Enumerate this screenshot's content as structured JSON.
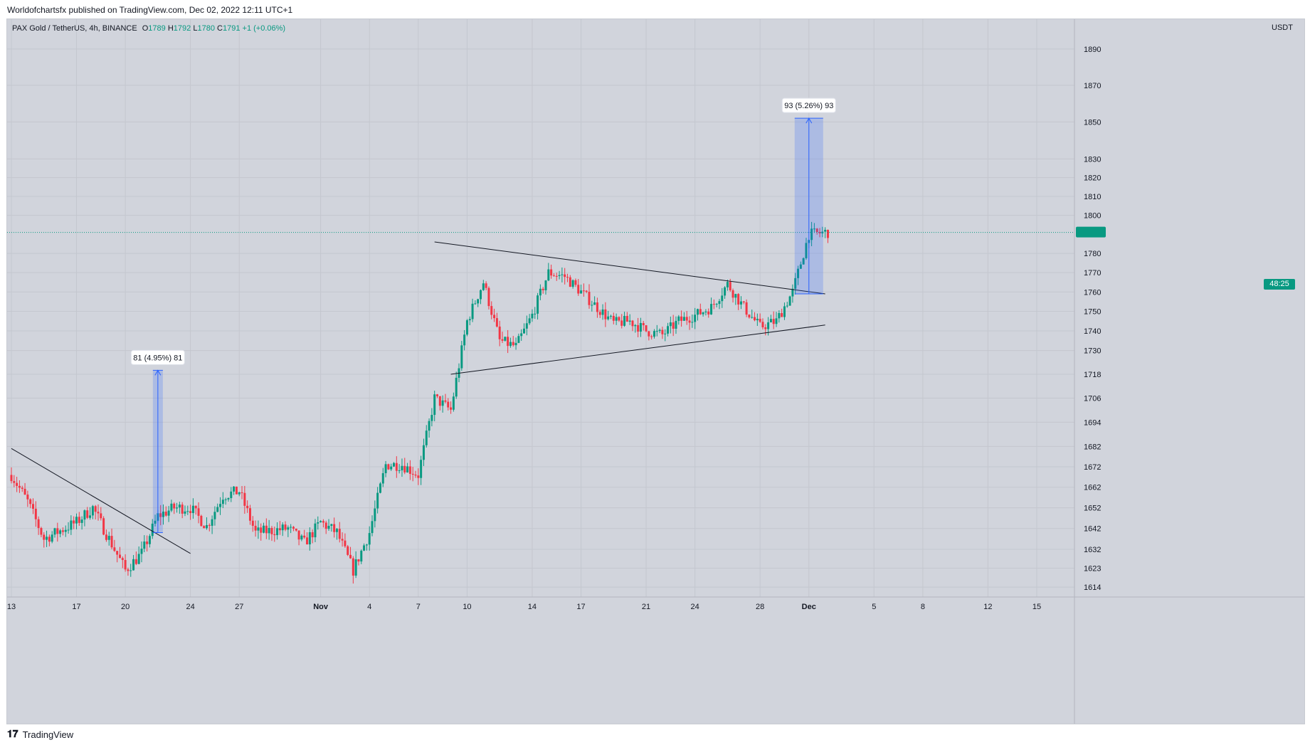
{
  "header": {
    "published_text": "Worldofchartsfx published on TradingView.com, Dec 02, 2022 12:11 UTC+1"
  },
  "legend": {
    "symbol": "PAX Gold / TetherUS, 4h, BINANCE",
    "open_label": "O",
    "open": "1789",
    "high_label": "H",
    "high": "1792",
    "low_label": "L",
    "low": "1780",
    "close_label": "C",
    "close": "1791",
    "change": "+1 (+0.06%)"
  },
  "price_axis": {
    "currency": "USDT",
    "countdown": "48:25"
  },
  "footer": {
    "brand": "TradingView"
  },
  "colors": {
    "background": "#d1d4dc",
    "up": "#089981",
    "down": "#f23645",
    "measure": "#2962ff"
  },
  "chart_data": {
    "type": "candlestick",
    "title": "PAX Gold / TetherUS, 4h, BINANCE",
    "y_scale": "log",
    "ylim": [
      1610,
      1905
    ],
    "y_ticks": [
      1614,
      1623,
      1632,
      1642,
      1652,
      1662,
      1672,
      1682,
      1694,
      1706,
      1718,
      1730,
      1740,
      1750,
      1760,
      1770,
      1780,
      1800,
      1810,
      1820,
      1830,
      1850,
      1870,
      1890
    ],
    "x_axis_labels": [
      "13",
      "17",
      "20",
      "24",
      "27",
      "Nov",
      "4",
      "7",
      "10",
      "14",
      "17",
      "21",
      "24",
      "28",
      "Dec",
      "5",
      "8",
      "12",
      "15"
    ],
    "x_axis_dates": [
      "2022-10-13",
      "2022-10-17",
      "2022-10-20",
      "2022-10-24",
      "2022-10-27",
      "2022-11-01",
      "2022-11-04",
      "2022-11-07",
      "2022-11-10",
      "2022-11-14",
      "2022-11-17",
      "2022-11-21",
      "2022-11-24",
      "2022-11-28",
      "2022-12-01",
      "2022-12-05",
      "2022-12-08",
      "2022-12-12",
      "2022-12-15"
    ],
    "price_anchors": [
      [
        "2022-10-13",
        1668
      ],
      [
        "2022-10-14",
        1655
      ],
      [
        "2022-10-15",
        1637
      ],
      [
        "2022-10-17",
        1645
      ],
      [
        "2022-10-18",
        1652
      ],
      [
        "2022-10-19",
        1637
      ],
      [
        "2022-10-20",
        1622
      ],
      [
        "2022-10-21",
        1630
      ],
      [
        "2022-10-22",
        1648
      ],
      [
        "2022-10-23",
        1652
      ],
      [
        "2022-10-24",
        1652
      ],
      [
        "2022-10-25",
        1643
      ],
      [
        "2022-10-26",
        1658
      ],
      [
        "2022-10-27",
        1660
      ],
      [
        "2022-10-28",
        1640
      ],
      [
        "2022-10-30",
        1642
      ],
      [
        "2022-10-31",
        1635
      ],
      [
        "2022-11-01",
        1645
      ],
      [
        "2022-11-02",
        1640
      ],
      [
        "2022-11-03",
        1622
      ],
      [
        "2022-11-04",
        1640
      ],
      [
        "2022-11-05",
        1673
      ],
      [
        "2022-11-06",
        1673
      ],
      [
        "2022-11-07",
        1668
      ],
      [
        "2022-11-08",
        1706
      ],
      [
        "2022-11-09",
        1700
      ],
      [
        "2022-11-10",
        1745
      ],
      [
        "2022-11-11",
        1765
      ],
      [
        "2022-11-12",
        1735
      ],
      [
        "2022-11-13",
        1732
      ],
      [
        "2022-11-14",
        1748
      ],
      [
        "2022-11-15",
        1770
      ],
      [
        "2022-11-16",
        1768
      ],
      [
        "2022-11-17",
        1760
      ],
      [
        "2022-11-18",
        1752
      ],
      [
        "2022-11-19",
        1744
      ],
      [
        "2022-11-20",
        1745
      ],
      [
        "2022-11-21",
        1740
      ],
      [
        "2022-11-22",
        1738
      ],
      [
        "2022-11-23",
        1745
      ],
      [
        "2022-11-24",
        1748
      ],
      [
        "2022-11-25",
        1752
      ],
      [
        "2022-11-26",
        1764
      ],
      [
        "2022-11-27",
        1752
      ],
      [
        "2022-11-28",
        1742
      ],
      [
        "2022-11-29",
        1745
      ],
      [
        "2022-11-30",
        1760
      ],
      [
        "2022-12-01",
        1790
      ],
      [
        "2022-12-02",
        1791
      ]
    ],
    "last_price": 1791,
    "trendlines": [
      {
        "name": "downtrend",
        "from": [
          "2022-10-13",
          1681
        ],
        "to": [
          "2022-10-24",
          1630
        ]
      },
      {
        "name": "triangle-upper",
        "from": [
          "2022-11-08",
          1786
        ],
        "to": [
          "2022-12-02",
          1759
        ]
      },
      {
        "name": "triangle-lower",
        "from": [
          "2022-11-09",
          1718
        ],
        "to": [
          "2022-12-02",
          1743
        ]
      }
    ],
    "measures": [
      {
        "label": "81 (4.95%) 81",
        "date": "2022-10-22",
        "from": 1640,
        "to": 1720
      },
      {
        "label": "93 (5.26%) 93",
        "date": "2022-12-01",
        "from": 1759,
        "to": 1852
      }
    ]
  }
}
